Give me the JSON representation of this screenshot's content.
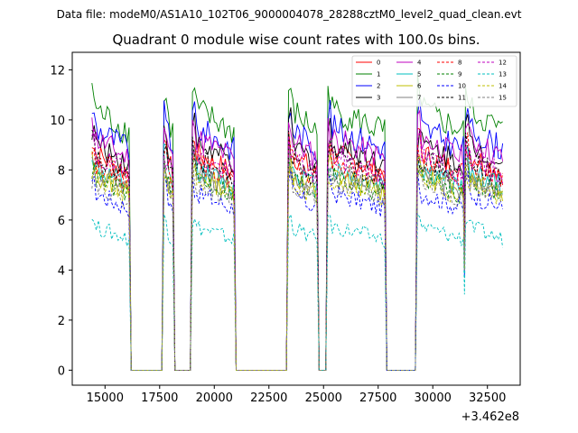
{
  "chart_data": {
    "type": "line",
    "suptitle": "Data file: modeM0/AS1A10_102T06_9000004078_28288cztM0_level2_quad_clean.evt",
    "title": "Quadrant 0 module wise count rates with 100.0s bins.",
    "xlabel": "",
    "ylabel": "",
    "x_offset_label": "+3.462e8",
    "xlim": [
      13500,
      34000
    ],
    "ylim": [
      -0.6,
      12.7
    ],
    "xticks": [
      15000,
      17500,
      20000,
      22500,
      25000,
      27500,
      30000,
      32500
    ],
    "xtick_labels": [
      "15000",
      "17500",
      "20000",
      "22500",
      "25000",
      "27500",
      "30000",
      "32500"
    ],
    "yticks": [
      0,
      2,
      4,
      6,
      8,
      10,
      12
    ],
    "ytick_labels": [
      "0",
      "2",
      "4",
      "6",
      "8",
      "10",
      "12"
    ],
    "legend_position": "top-right",
    "segments": [
      [
        14400,
        16100
      ],
      [
        17700,
        18100
      ],
      [
        19000,
        20900
      ],
      [
        23400,
        24700
      ],
      [
        25200,
        27800
      ],
      [
        29300,
        31400
      ],
      [
        31500,
        33200
      ]
    ],
    "gap_value": 0,
    "series": [
      {
        "name": "0",
        "color": "#ff0000",
        "dash": "solid",
        "level": 8.3
      },
      {
        "name": "1",
        "color": "#008000",
        "dash": "solid",
        "level": 10.0
      },
      {
        "name": "2",
        "color": "#0000ff",
        "dash": "solid",
        "level": 9.3
      },
      {
        "name": "3",
        "color": "#000000",
        "dash": "solid",
        "level": 8.7
      },
      {
        "name": "4",
        "color": "#bf00bf",
        "dash": "solid",
        "level": 8.9
      },
      {
        "name": "5",
        "color": "#00bfbf",
        "dash": "solid",
        "level": 7.7
      },
      {
        "name": "6",
        "color": "#bfbf00",
        "dash": "solid",
        "level": 7.5
      },
      {
        "name": "7",
        "color": "#808080",
        "dash": "solid",
        "level": 7.6
      },
      {
        "name": "8",
        "color": "#ff0000",
        "dash": "dashed",
        "level": 8.0
      },
      {
        "name": "9",
        "color": "#008000",
        "dash": "dashed",
        "level": 7.4
      },
      {
        "name": "10",
        "color": "#0000ff",
        "dash": "dashed",
        "level": 6.8
      },
      {
        "name": "11",
        "color": "#000000",
        "dash": "dashed",
        "level": 8.1
      },
      {
        "name": "12",
        "color": "#bf00bf",
        "dash": "dashed",
        "level": 8.2
      },
      {
        "name": "13",
        "color": "#00bfbf",
        "dash": "dashed",
        "level": 5.5
      },
      {
        "name": "14",
        "color": "#bfbf00",
        "dash": "dashed",
        "level": 7.3
      },
      {
        "name": "15",
        "color": "#808080",
        "dash": "dashed",
        "level": 7.2
      }
    ]
  }
}
